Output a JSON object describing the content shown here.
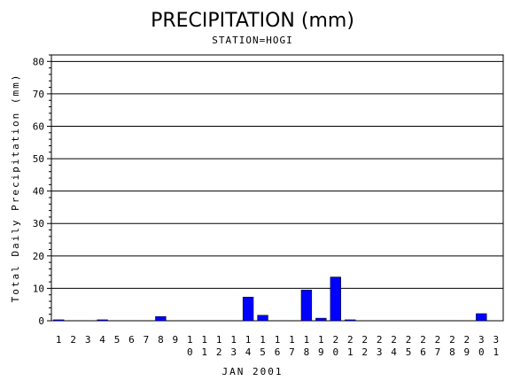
{
  "chart_data": {
    "type": "bar",
    "title": "PRECIPITATION (mm)",
    "subtitle": "STATION=HOGI",
    "xlabel": "JAN 2001",
    "ylabel": "Total Daily Precipitation (mm)",
    "ylim": [
      0,
      82
    ],
    "yticks": [
      0,
      10,
      20,
      30,
      40,
      50,
      60,
      70,
      80
    ],
    "grid": true,
    "bar_color": "#0000ff",
    "categories": [
      "1",
      "2",
      "3",
      "4",
      "5",
      "6",
      "7",
      "8",
      "9",
      "10",
      "11",
      "12",
      "13",
      "14",
      "15",
      "16",
      "17",
      "18",
      "19",
      "20",
      "21",
      "22",
      "23",
      "24",
      "25",
      "26",
      "27",
      "28",
      "29",
      "30",
      "31"
    ],
    "values": [
      0.3,
      0,
      0,
      0.3,
      0,
      0,
      0,
      1.3,
      0,
      0,
      0,
      0,
      0,
      7.3,
      1.7,
      0,
      0,
      9.5,
      0.8,
      13.5,
      0.3,
      0,
      0,
      0,
      0,
      0,
      0,
      0,
      0,
      2.2,
      0
    ]
  }
}
